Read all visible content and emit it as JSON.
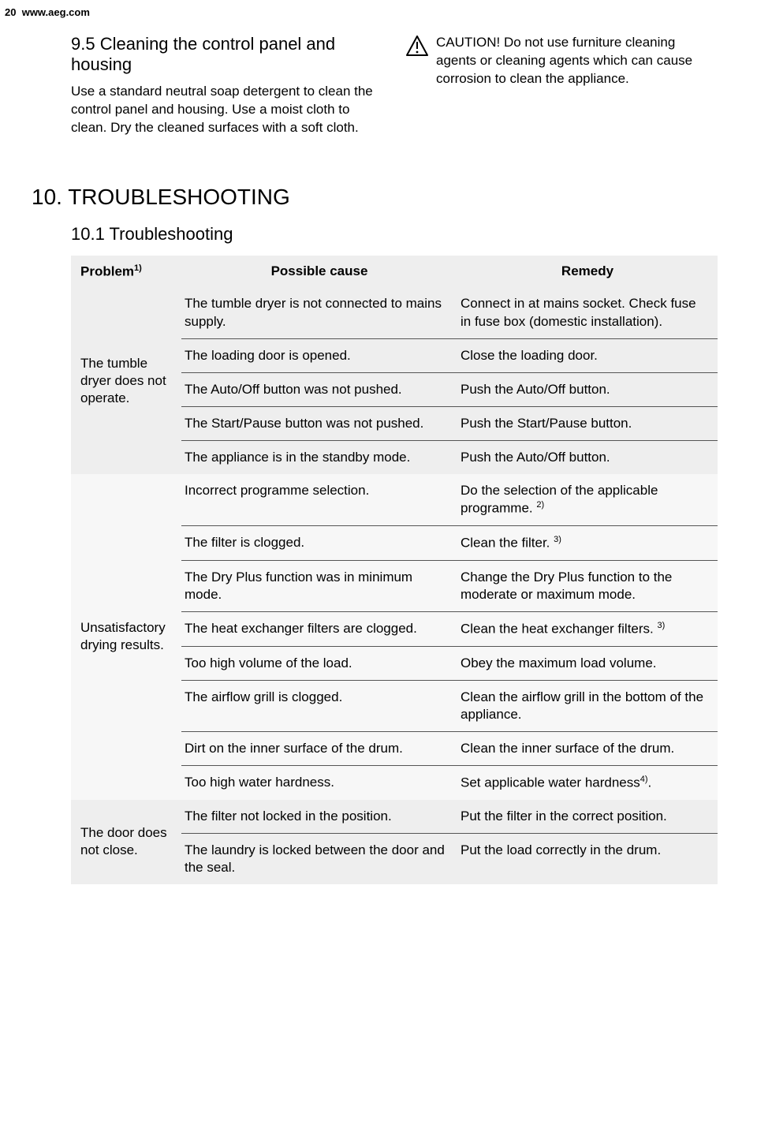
{
  "header": {
    "page_number": "20",
    "url": "www.aeg.com"
  },
  "section_9_5": {
    "title": "9.5 Cleaning the control panel and housing",
    "text": "Use a standard neutral soap detergent to clean the control panel and housing. Use a moist cloth to clean. Dry the cleaned surfaces with a soft cloth."
  },
  "caution": {
    "title": "CAUTION!",
    "text": "Do not use furniture cleaning agents or cleaning agents which can cause corrosion to clean the appliance."
  },
  "chapter_10": {
    "title": "10. TROUBLESHOOTING",
    "sub": "10.1 Troubleshooting"
  },
  "table": {
    "headers": {
      "problem": "Problem",
      "problem_sup": "1)",
      "cause": "Possible cause",
      "remedy": "Remedy"
    },
    "groups": [
      {
        "bg": "a",
        "problem": "The tumble dryer does not operate.",
        "rows": [
          {
            "cause": "The tumble dryer is not connected to mains supply.",
            "remedy": "Connect in at mains socket. Check fuse in fuse box (domestic installation)."
          },
          {
            "cause": "The loading door is opened.",
            "remedy": "Close the loading door."
          },
          {
            "cause": "The Auto/Off button was not pushed.",
            "remedy": "Push the Auto/Off button."
          },
          {
            "cause": "The Start/Pause button was not pushed.",
            "remedy": "Push the Start/Pause button."
          },
          {
            "cause": "The appliance is in the standby mode.",
            "remedy": "Push the Auto/Off button."
          }
        ]
      },
      {
        "bg": "b",
        "problem": "Unsatisfactory drying results.",
        "rows": [
          {
            "cause": "Incorrect programme selection.",
            "remedy": "Do the selection of the applicable programme. ",
            "sup": "2)"
          },
          {
            "cause": "The filter is clogged.",
            "remedy": "Clean the filter. ",
            "sup": "3)"
          },
          {
            "cause": "The Dry Plus function was in minimum mode.",
            "remedy": "Change the Dry Plus function to the moderate or maximum mode."
          },
          {
            "cause": "The heat exchanger filters are clogged.",
            "remedy": "Clean the heat exchanger filters. ",
            "sup": "3)"
          },
          {
            "cause": "Too high volume of the load.",
            "remedy": "Obey the maximum load volume."
          },
          {
            "cause": "The airflow grill is clogged.",
            "remedy": "Clean the airflow grill in the bottom of the appliance."
          },
          {
            "cause": "Dirt on the inner surface of the drum.",
            "remedy": "Clean the inner surface of the drum."
          },
          {
            "cause": "Too high water hardness.",
            "remedy": "Set applicable water hardness",
            "sup": "4)",
            "suffix": "."
          }
        ]
      },
      {
        "bg": "a",
        "problem": "The door does not close.",
        "rows": [
          {
            "cause": "The filter not locked in the position.",
            "remedy": "Put the filter in the correct position."
          },
          {
            "cause": "The laundry is locked between the door and the seal.",
            "remedy": "Put the load correctly in the drum."
          }
        ]
      }
    ]
  }
}
